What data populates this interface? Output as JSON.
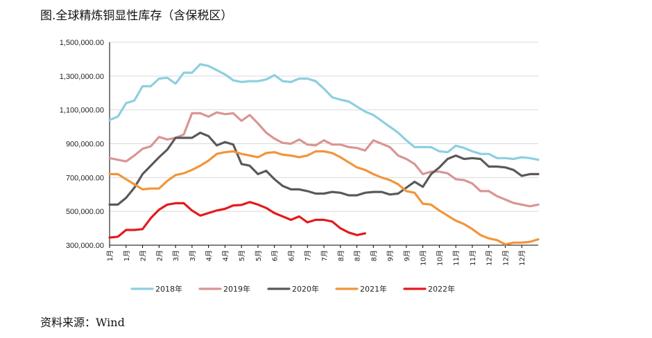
{
  "figure": {
    "title": "图.全球精炼铜显性库存（含保税区）",
    "source": "资料来源：Wind"
  },
  "chart_data": {
    "type": "line",
    "ylim": [
      300000,
      1500000
    ],
    "yticks": [
      "1,500,000.00",
      "1,300,000.00",
      "1,100,000.00",
      "900,000.00",
      "700,000.00",
      "500,000.00",
      "300,000.00"
    ],
    "ytick_values": [
      1500000,
      1300000,
      1100000,
      900000,
      700000,
      500000,
      300000
    ],
    "x_index_range": [
      0,
      52
    ],
    "xticks": [
      "1月",
      "1月",
      "2月",
      "2月",
      "3月",
      "3月",
      "4月",
      "4月",
      "5月",
      "5月",
      "6月",
      "6月",
      "7月",
      "7月",
      "8月",
      "8月",
      "8月",
      "9月",
      "9月",
      "10月",
      "10月",
      "11月",
      "11月",
      "12月",
      "12月",
      "12月"
    ],
    "xtick_index": [
      0,
      2,
      4,
      6,
      8,
      10,
      12,
      14,
      16,
      18,
      20,
      22,
      24,
      26,
      28,
      30,
      32,
      34,
      36,
      38,
      40,
      42,
      44,
      46,
      48,
      50
    ],
    "grid": "horizontal",
    "legend_position": "bottom",
    "series": [
      {
        "name": "2018年",
        "color": "#8ccfe0",
        "values": [
          1040000,
          1060000,
          1140000,
          1155000,
          1240000,
          1240000,
          1285000,
          1290000,
          1255000,
          1320000,
          1320000,
          1370000,
          1360000,
          1335000,
          1310000,
          1275000,
          1265000,
          1270000,
          1270000,
          1280000,
          1305000,
          1270000,
          1265000,
          1285000,
          1285000,
          1270000,
          1225000,
          1175000,
          1160000,
          1150000,
          1120000,
          1090000,
          1070000,
          1035000,
          1000000,
          965000,
          920000,
          880000,
          880000,
          880000,
          855000,
          850000,
          888000,
          875000,
          855000,
          840000,
          840000,
          815000,
          815000,
          810000,
          820000,
          815000,
          805000
        ]
      },
      {
        "name": "2019年",
        "color": "#d99594",
        "values": [
          815000,
          805000,
          795000,
          830000,
          870000,
          885000,
          940000,
          925000,
          935000,
          955000,
          1080000,
          1080000,
          1060000,
          1085000,
          1075000,
          1080000,
          1035000,
          1070000,
          1020000,
          965000,
          930000,
          905000,
          900000,
          925000,
          895000,
          890000,
          920000,
          895000,
          895000,
          880000,
          875000,
          860000,
          920000,
          900000,
          880000,
          830000,
          810000,
          780000,
          720000,
          735000,
          735000,
          725000,
          690000,
          685000,
          665000,
          620000,
          620000,
          590000,
          570000,
          550000,
          540000,
          530000,
          540000
        ]
      },
      {
        "name": "2020年",
        "color": "#595959",
        "values": [
          540000,
          540000,
          580000,
          640000,
          720000,
          770000,
          820000,
          865000,
          935000,
          935000,
          935000,
          965000,
          945000,
          890000,
          910000,
          895000,
          780000,
          770000,
          720000,
          740000,
          690000,
          650000,
          630000,
          630000,
          620000,
          605000,
          605000,
          615000,
          610000,
          595000,
          595000,
          610000,
          615000,
          615000,
          600000,
          605000,
          640000,
          675000,
          645000,
          720000,
          760000,
          810000,
          830000,
          810000,
          815000,
          810000,
          765000,
          765000,
          760000,
          745000,
          710000,
          720000,
          720000
        ]
      },
      {
        "name": "2021年",
        "color": "#f2953a",
        "values": [
          720000,
          720000,
          690000,
          660000,
          630000,
          635000,
          635000,
          680000,
          715000,
          725000,
          745000,
          770000,
          800000,
          840000,
          850000,
          855000,
          840000,
          830000,
          820000,
          845000,
          850000,
          835000,
          830000,
          820000,
          830000,
          855000,
          855000,
          845000,
          820000,
          790000,
          760000,
          745000,
          720000,
          700000,
          685000,
          660000,
          620000,
          610000,
          545000,
          540000,
          505000,
          475000,
          445000,
          425000,
          395000,
          360000,
          340000,
          330000,
          305000,
          315000,
          315000,
          320000,
          335000
        ]
      },
      {
        "name": "2022年",
        "color": "#e31a1c",
        "values": [
          345000,
          350000,
          390000,
          390000,
          395000,
          460000,
          510000,
          540000,
          548000,
          548000,
          505000,
          475000,
          490000,
          505000,
          515000,
          535000,
          538000,
          555000,
          540000,
          520000,
          490000,
          470000,
          450000,
          470000,
          435000,
          450000,
          450000,
          440000,
          400000,
          375000,
          360000,
          370000
        ]
      }
    ]
  }
}
